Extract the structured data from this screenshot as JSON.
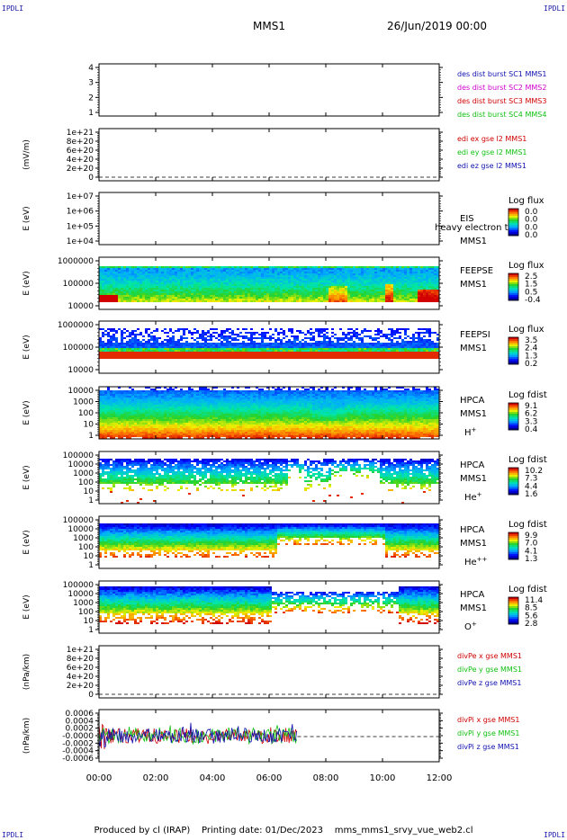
{
  "header": {
    "mission": "MMS1",
    "datetime": "26/Jun/2019 00:00",
    "logo_left_top": "IPDLI",
    "logo_right_top": "IPDLI",
    "logo_left_bottom": "IPDLI",
    "logo_right_bottom": "IPDLI"
  },
  "footer": {
    "producer": "Produced by cl (IRAP)",
    "printing": "Printing date: 01/Dec/2023",
    "script": "mms_mms1_srvy_vue_web2.cl"
  },
  "colors": {
    "blue": "#1010b0",
    "magenta": "#d000d0",
    "red": "#d00000",
    "green": "#10c010"
  },
  "chart_data": {
    "type": "heatmap",
    "x_axis": {
      "ticks": [
        "00:00",
        "02:00",
        "04:00",
        "06:00",
        "08:00",
        "10:00",
        "12:00"
      ]
    },
    "panels": [
      {
        "kind": "empty",
        "ylabel": "",
        "yticks": [
          "4",
          "3",
          "2",
          "1"
        ],
        "legend": [
          {
            "text": "des dist burst SC1 MMS1",
            "color": "blue"
          },
          {
            "text": "des dist burst SC2 MMS2",
            "color": "magenta"
          },
          {
            "text": "des dist burst SC3 MMS3",
            "color": "red"
          },
          {
            "text": "des dist burst SC4 MMS4",
            "color": "green"
          }
        ]
      },
      {
        "kind": "empty",
        "ylabel": "(mV/m)",
        "yticks": [
          "1e+21",
          "8e+20",
          "6e+20",
          "4e+20",
          "2e+20",
          "0"
        ],
        "dashed_zero": true,
        "legend": [
          {
            "text": "edi ex gse l2 MMS1",
            "color": "red"
          },
          {
            "text": "edi ey gse l2 MMS1",
            "color": "green"
          },
          {
            "text": "edi ez gse l2 MMS1",
            "color": "blue"
          }
        ]
      },
      {
        "kind": "empty",
        "ylabel": "E (eV)",
        "yticks": [
          "1e+07",
          "1e+06",
          "1e+05",
          "1e+04"
        ],
        "labels": [
          "EIS",
          "MMS1"
        ],
        "overlay_text": "heavy electron to",
        "colorbar": {
          "title": "Log flux",
          "ticks": [
            "0.0",
            "0.0",
            "0.0",
            "0.0"
          ],
          "scheme": "rainbow"
        }
      },
      {
        "kind": "spectrogram",
        "ylabel": "E (eV)",
        "style": "feepse",
        "yticks": [
          "1000000",
          "100000",
          "10000"
        ],
        "labels": [
          "FEEPSE",
          "MMS1"
        ],
        "colorbar": {
          "title": "Log flux",
          "ticks": [
            "2.5",
            "1.5",
            "0.5",
            "-0.4"
          ],
          "scheme": "rainbow"
        }
      },
      {
        "kind": "spectrogram",
        "ylabel": "E (eV)",
        "style": "feepsi",
        "yticks": [
          "1000000",
          "100000",
          "10000"
        ],
        "labels": [
          "FEEPSI",
          "MMS1"
        ],
        "colorbar": {
          "title": "Log flux",
          "ticks": [
            "3.5",
            "2.4",
            "1.3",
            "0.2"
          ],
          "scheme": "rainbow"
        }
      },
      {
        "kind": "spectrogram",
        "ylabel": "E (eV)",
        "style": "hpca_h",
        "yticks": [
          "10000",
          "1000",
          "100",
          "10",
          "1"
        ],
        "labels": [
          "HPCA",
          "MMS1",
          "H+"
        ],
        "colorbar": {
          "title": "Log fdist",
          "ticks": [
            "9.1",
            "6.2",
            "3.3",
            "0.4"
          ],
          "scheme": "rainbow"
        }
      },
      {
        "kind": "spectrogram",
        "ylabel": "E (eV)",
        "style": "hpca_he",
        "yticks": [
          "100000",
          "10000",
          "1000",
          "100",
          "10",
          "1"
        ],
        "labels": [
          "HPCA",
          "MMS1",
          "He+"
        ],
        "colorbar": {
          "title": "Log fdist",
          "ticks": [
            "10.2",
            "7.3",
            "4.4",
            "1.6"
          ],
          "scheme": "rainbow"
        }
      },
      {
        "kind": "spectrogram",
        "ylabel": "E (eV)",
        "style": "hpca_hepp",
        "yticks": [
          "100000",
          "10000",
          "1000",
          "100",
          "10",
          "1"
        ],
        "labels": [
          "HPCA",
          "MMS1",
          "He++"
        ],
        "colorbar": {
          "title": "Log fdist",
          "ticks": [
            "9.9",
            "7.0",
            "4.1",
            "1.3"
          ],
          "scheme": "rainbow"
        }
      },
      {
        "kind": "spectrogram",
        "ylabel": "E (eV)",
        "style": "hpca_o",
        "yticks": [
          "100000",
          "10000",
          "1000",
          "100",
          "10",
          "1"
        ],
        "labels": [
          "HPCA",
          "MMS1",
          "O+"
        ],
        "colorbar": {
          "title": "Log fdist",
          "ticks": [
            "11.4",
            "8.5",
            "5.6",
            "2.8"
          ],
          "scheme": "rainbow"
        }
      },
      {
        "kind": "empty",
        "ylabel": "(nPa/km)",
        "yticks": [
          "1e+21",
          "8e+20",
          "6e+20",
          "4e+20",
          "2e+20",
          "0"
        ],
        "dashed_zero": true,
        "legend": [
          {
            "text": "divPe x gse MMS1",
            "color": "red"
          },
          {
            "text": "divPe y gse MMS1",
            "color": "green"
          },
          {
            "text": "divPe z gse MMS1",
            "color": "blue"
          }
        ]
      },
      {
        "kind": "lines",
        "ylabel": "(nPa/km)",
        "yticks": [
          "0.0006",
          "0.0004",
          "0.0002",
          "-0.0000",
          "-0.0002",
          "-0.0004",
          "-0.0006"
        ],
        "ylim": [
          -0.0006,
          0.0006
        ],
        "data_end_hour": 7.0,
        "dashed_zero": true,
        "legend": [
          {
            "text": "divPi x gse MMS1",
            "color": "red"
          },
          {
            "text": "divPi y gse MMS1",
            "color": "green"
          },
          {
            "text": "divPi z gse MMS1",
            "color": "blue"
          }
        ]
      }
    ]
  }
}
